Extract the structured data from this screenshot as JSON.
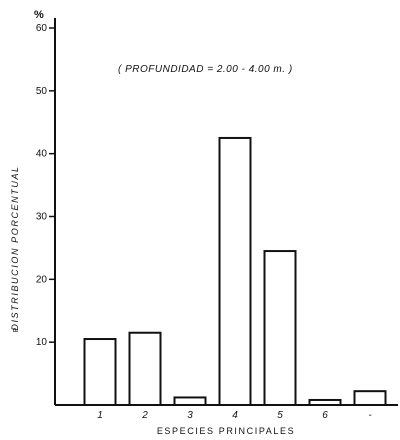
{
  "chart_data": {
    "type": "bar",
    "y_unit": "%",
    "annotation": "( PROFUNDIDAD = 2.00 - 4.00 m. )",
    "xlabel": "ESPECIES  PRINCIPALES",
    "ylabel": "DISTRIBUCION  PORCENTUAL",
    "ylabel_prefix": "P",
    "categories": [
      "1",
      "2",
      "3",
      "4",
      "5",
      "6",
      "-"
    ],
    "values": [
      10.5,
      11.5,
      1.2,
      42.5,
      24.5,
      0.8,
      2.2
    ],
    "ylim": [
      0,
      60
    ],
    "yticks": [
      "10",
      "20",
      "30",
      "40",
      "50",
      "60"
    ],
    "ytick_values": [
      10,
      20,
      30,
      40,
      50,
      60
    ],
    "grid": false,
    "colors": {
      "bar_fill": "#ffffff",
      "bar_stroke": "#111111",
      "axis": "#111111"
    }
  }
}
